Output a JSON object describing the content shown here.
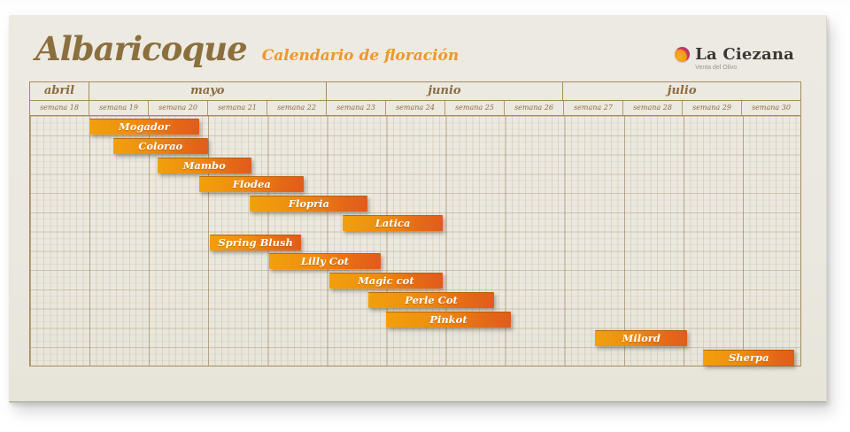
{
  "page": {
    "title": "Albaricoque",
    "subtitle": "Calendario de floración"
  },
  "logo": {
    "name": "La Ciezana",
    "tagline": "Venta del Olivo"
  },
  "calendar": {
    "first_week": 18,
    "total_weeks": 13,
    "months": [
      {
        "label": "abril",
        "weeks": 1
      },
      {
        "label": "mayo",
        "weeks": 4
      },
      {
        "label": "junio",
        "weeks": 4
      },
      {
        "label": "julio",
        "weeks": 4
      }
    ],
    "week_labels": [
      "semana 18",
      "semana 19",
      "semana 20",
      "semana 21",
      "semana 22",
      "semana 23",
      "semana 24",
      "semana 25",
      "semana 26",
      "semana 27",
      "semana 28",
      "semana 29",
      "semana 30"
    ]
  },
  "chart_data": {
    "type": "gantt",
    "title": "Albaricoque — Calendario de floración",
    "x_unit": "semana",
    "x_range": [
      18,
      31
    ],
    "bars": [
      {
        "name": "Mogador",
        "start_week": 19.0,
        "end_week": 20.85
      },
      {
        "name": "Colorao",
        "start_week": 19.4,
        "end_week": 21.0
      },
      {
        "name": "Mambo",
        "start_week": 20.15,
        "end_week": 21.73
      },
      {
        "name": "Flodea",
        "start_week": 20.86,
        "end_week": 22.62
      },
      {
        "name": "Flopria",
        "start_week": 21.71,
        "end_week": 23.7
      },
      {
        "name": "Latica",
        "start_week": 23.28,
        "end_week": 24.96
      },
      {
        "name": "Spring Blush",
        "start_week": 21.03,
        "end_week": 22.58
      },
      {
        "name": "Lilly Cot",
        "start_week": 22.03,
        "end_week": 23.92
      },
      {
        "name": "Magic cot",
        "start_week": 23.05,
        "end_week": 24.96
      },
      {
        "name": "Perle Cot",
        "start_week": 23.71,
        "end_week": 25.83
      },
      {
        "name": "Pinkot",
        "start_week": 24.01,
        "end_week": 26.11
      },
      {
        "name": "Milord",
        "start_week": 27.54,
        "end_week": 29.09
      },
      {
        "name": "Sherpa",
        "start_week": 29.36,
        "end_week": 30.9
      }
    ]
  },
  "colors": {
    "paper": "#ebe8df",
    "title_brown": "#8c6f3e",
    "accent_orange": "#ef9729",
    "grid_brown": "#a68a5c",
    "bar_gradient_start": "#f2a00c",
    "bar_gradient_end": "#e25b1b",
    "logo_magenta": "#c63a66",
    "logo_gold": "#f4b11e"
  }
}
